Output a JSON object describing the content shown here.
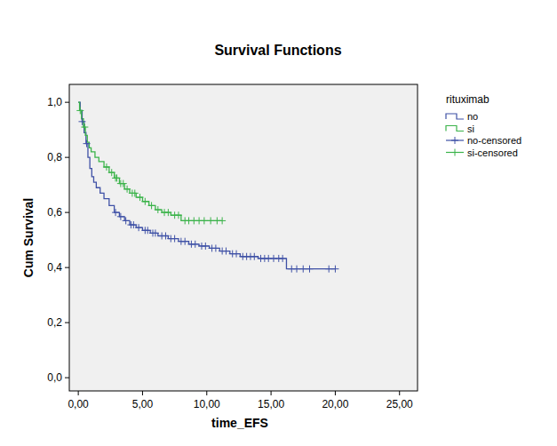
{
  "chart_data": {
    "type": "line",
    "title": "Survival Functions",
    "x_label": "time_EFS",
    "y_label": "Cum Survival",
    "legend_title": "rituximab",
    "legend": "right",
    "grid": false,
    "xlim": [
      -0.7,
      26.4
    ],
    "ylim": [
      -0.048,
      1.065
    ],
    "xticks": [
      {
        "value": 0,
        "label": "0,00"
      },
      {
        "value": 5,
        "label": "5,00"
      },
      {
        "value": 10,
        "label": "10,00"
      },
      {
        "value": 15,
        "label": "15,00"
      },
      {
        "value": 20,
        "label": "20,00"
      },
      {
        "value": 25,
        "label": "25,00"
      }
    ],
    "yticks": [
      {
        "value": 0,
        "label": "0,0"
      },
      {
        "value": 0.2,
        "label": "0,2"
      },
      {
        "value": 0.4,
        "label": "0,4"
      },
      {
        "value": 0.6,
        "label": "0,6"
      },
      {
        "value": 0.8,
        "label": "0,8"
      },
      {
        "value": 1,
        "label": "1,0"
      }
    ],
    "series": [
      {
        "name": "no",
        "type": "step",
        "color": "#3f51a6",
        "x": [
          0,
          0.15,
          0.3,
          0.45,
          0.6,
          0.75,
          0.9,
          1.05,
          1.2,
          1.4,
          1.7,
          2.0,
          2.4,
          2.8,
          3.2,
          3.6,
          4.0,
          4.5,
          5.0,
          5.6,
          6.2,
          7.0,
          7.8,
          8.6,
          9.4,
          10.2,
          11.0,
          11.8,
          12.6,
          14.0,
          16.2,
          20.0
        ],
        "values": [
          1.0,
          0.97,
          0.93,
          0.89,
          0.85,
          0.8,
          0.76,
          0.73,
          0.71,
          0.69,
          0.67,
          0.65,
          0.625,
          0.6,
          0.585,
          0.57,
          0.555,
          0.545,
          0.535,
          0.525,
          0.515,
          0.505,
          0.495,
          0.485,
          0.478,
          0.47,
          0.46,
          0.45,
          0.44,
          0.433,
          0.395,
          0.395
        ]
      },
      {
        "name": "si",
        "type": "step",
        "color": "#3bb34a",
        "x": [
          0,
          0.1,
          0.25,
          0.4,
          0.55,
          0.7,
          0.85,
          1.0,
          1.3,
          1.6,
          2.0,
          2.4,
          2.8,
          3.2,
          3.6,
          4.0,
          4.5,
          5.0,
          5.5,
          6.0,
          6.5,
          7.2,
          8.0,
          11.2
        ],
        "values": [
          1.0,
          0.97,
          0.94,
          0.91,
          0.88,
          0.855,
          0.835,
          0.82,
          0.8,
          0.785,
          0.765,
          0.745,
          0.725,
          0.705,
          0.685,
          0.67,
          0.655,
          0.64,
          0.625,
          0.61,
          0.6,
          0.59,
          0.57,
          0.57
        ]
      },
      {
        "name": "no-censored",
        "type": "scatter",
        "marker": "plus",
        "color": "#3f51a6",
        "x": [
          0.3,
          0.65,
          2.9,
          3.3,
          3.7,
          4.1,
          4.3,
          4.7,
          5.2,
          5.4,
          5.8,
          6.0,
          6.5,
          6.8,
          7.2,
          7.5,
          8.0,
          8.3,
          8.8,
          9.1,
          9.6,
          9.9,
          10.4,
          10.7,
          11.2,
          11.5,
          12.0,
          12.3,
          12.8,
          13.1,
          13.4,
          13.7,
          14.2,
          14.5,
          14.8,
          15.2,
          15.6,
          15.9,
          16.6,
          17.0,
          17.5,
          18.0,
          19.5,
          20.0
        ],
        "values": [
          0.93,
          0.85,
          0.6,
          0.585,
          0.57,
          0.555,
          0.555,
          0.545,
          0.535,
          0.535,
          0.525,
          0.525,
          0.515,
          0.515,
          0.505,
          0.505,
          0.495,
          0.495,
          0.485,
          0.485,
          0.478,
          0.478,
          0.47,
          0.47,
          0.46,
          0.46,
          0.45,
          0.45,
          0.44,
          0.44,
          0.44,
          0.44,
          0.433,
          0.433,
          0.433,
          0.433,
          0.433,
          0.433,
          0.395,
          0.395,
          0.395,
          0.395,
          0.395,
          0.395
        ]
      },
      {
        "name": "si-censored",
        "type": "scatter",
        "marker": "plus",
        "color": "#3bb34a",
        "x": [
          0.15,
          0.5,
          2.2,
          2.6,
          2.9,
          3.0,
          3.3,
          3.5,
          3.8,
          4.2,
          4.4,
          4.8,
          5.2,
          5.7,
          6.2,
          6.7,
          7.0,
          7.5,
          7.8,
          8.3,
          8.6,
          9.0,
          9.4,
          9.8,
          10.3,
          10.8,
          11.2
        ],
        "values": [
          0.97,
          0.91,
          0.765,
          0.745,
          0.725,
          0.725,
          0.705,
          0.705,
          0.685,
          0.67,
          0.67,
          0.655,
          0.64,
          0.625,
          0.61,
          0.6,
          0.6,
          0.59,
          0.59,
          0.57,
          0.57,
          0.57,
          0.57,
          0.57,
          0.57,
          0.57,
          0.57
        ]
      }
    ]
  }
}
